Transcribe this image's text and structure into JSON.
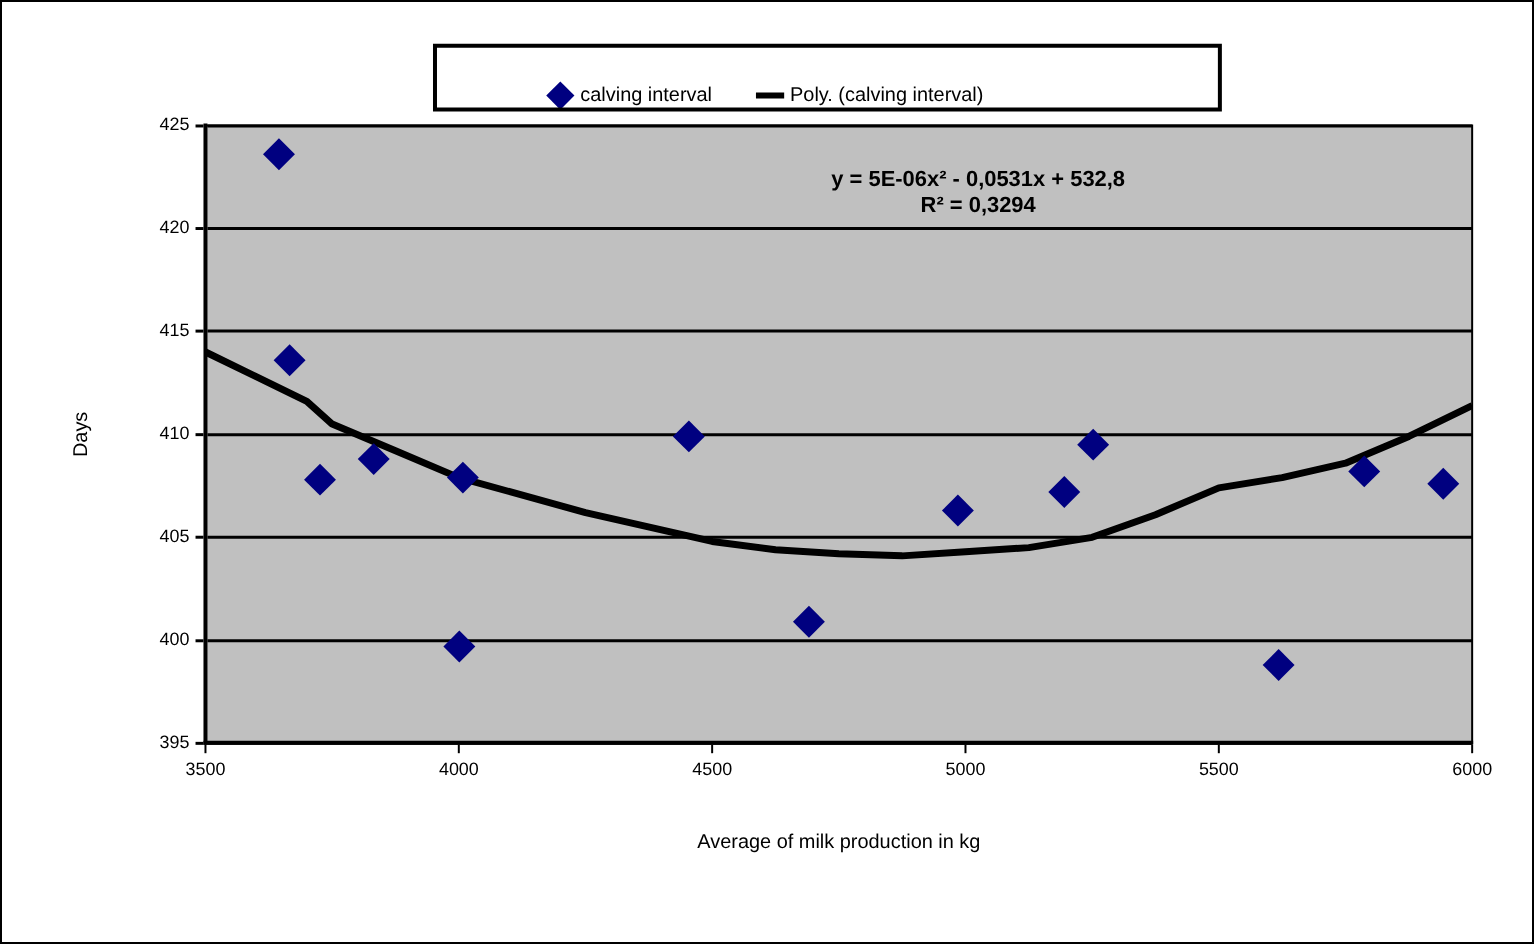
{
  "chart_data": {
    "type": "scatter",
    "xlabel": "Average of milk production in kg",
    "ylabel": "Days",
    "annotations": [
      "y = 5E-06x² - 0,0531x + 532,8",
      "R² = 0,3294"
    ],
    "series": [
      {
        "name": "calving interval",
        "color": "#000080",
        "marker": "diamond",
        "x": [
          3645,
          3666,
          3726,
          3832,
          4008,
          4001,
          4454,
          4691,
          4985,
          5195,
          5252,
          5618,
          5787,
          5943
        ],
        "values": [
          423.6,
          413.6,
          407.8,
          408.8,
          407.9,
          399.7,
          409.9,
          400.9,
          406.3,
          407.2,
          409.5,
          398.8,
          408.2,
          407.6
        ]
      },
      {
        "name": "Poly. (calving interval)",
        "color": "#000000",
        "type": "line",
        "marker": "none",
        "x": [
          3500,
          3600,
          3700,
          3750,
          3875,
          4000,
          4250,
          4500,
          4625,
          4750,
          4875,
          5000,
          5125,
          5250,
          5375,
          5500,
          5625,
          5750,
          5875,
          6000
        ],
        "values": [
          414.0,
          412.8,
          411.6,
          410.5,
          409.2,
          407.9,
          406.2,
          404.8,
          404.4,
          404.2,
          404.1,
          404.3,
          404.5,
          405.0,
          406.1,
          407.4,
          407.9,
          408.6,
          409.9,
          411.4
        ]
      }
    ],
    "xlim": [
      3500,
      6000
    ],
    "xticks": [
      3500,
      4000,
      4500,
      5000,
      5500,
      6000
    ],
    "ylim": [
      395,
      425
    ],
    "yticks": [
      395,
      400,
      405,
      410,
      415,
      420,
      425
    ],
    "grid": "y",
    "legend": "top"
  }
}
